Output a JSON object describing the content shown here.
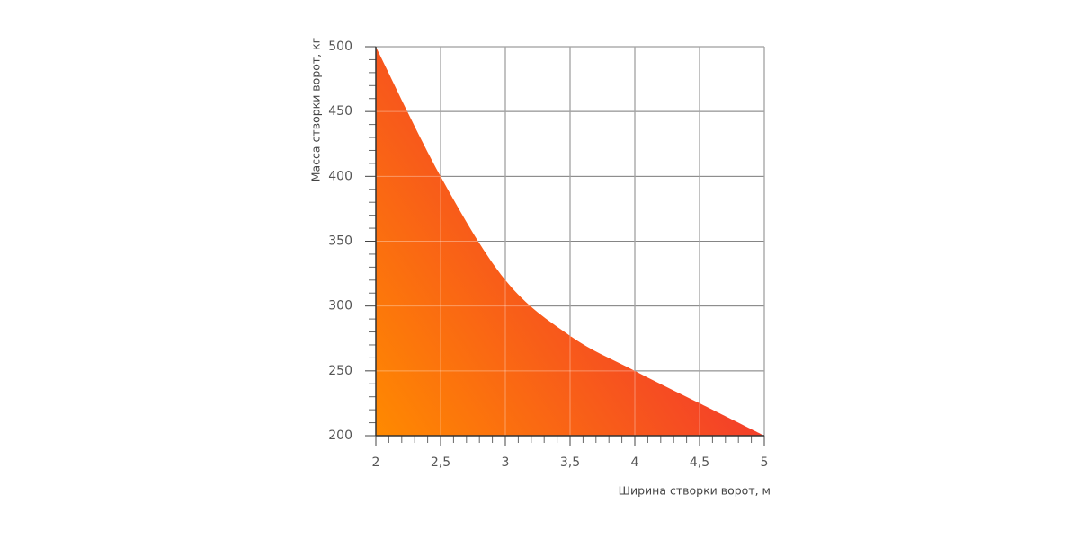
{
  "chart_data": {
    "type": "area",
    "xlabel": "Ширина створки ворот, м",
    "ylabel": "Масса створки ворот, кг",
    "x": [
      2,
      2.5,
      3,
      3.5,
      4,
      4.5,
      5
    ],
    "values": [
      500,
      400,
      320,
      277,
      250,
      225,
      200
    ],
    "gradient": [
      "#ff8a00",
      "#ee1a3e"
    ],
    "xlim": [
      2,
      5
    ],
    "ylim": [
      200,
      500
    ],
    "xticks": [
      2,
      {
        "value": 2.5,
        "label": "2,5"
      },
      3,
      {
        "value": 3.5,
        "label": "3,5"
      },
      4,
      {
        "value": 4.5,
        "label": "4,5"
      },
      5
    ],
    "yticks": [
      200,
      250,
      300,
      350,
      400,
      450,
      500
    ],
    "xminorticks": [
      2.1,
      2.2,
      2.3,
      2.4,
      2.6,
      2.7,
      2.8,
      2.9,
      3.1,
      3.2,
      3.3,
      3.4,
      3.6,
      3.7,
      3.8,
      3.9,
      4.1,
      4.2,
      4.3,
      4.4,
      4.6,
      4.7,
      4.8,
      4.9
    ],
    "yminorticks": [
      210,
      220,
      230,
      240,
      260,
      270,
      280,
      290,
      310,
      320,
      330,
      340,
      360,
      370,
      380,
      390,
      410,
      420,
      430,
      440,
      460,
      470,
      480,
      490
    ],
    "grid": true
  }
}
